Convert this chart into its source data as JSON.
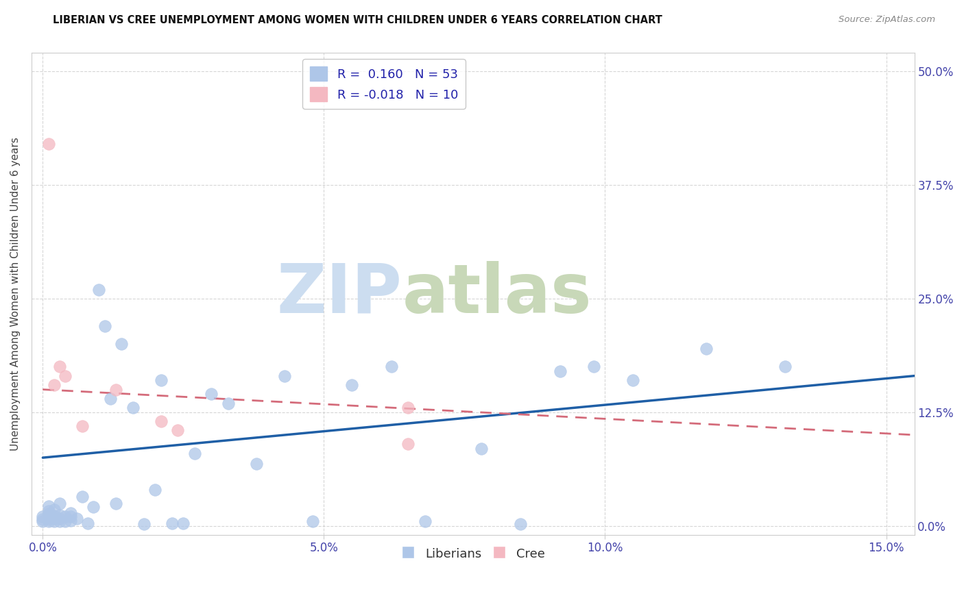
{
  "title": "LIBERIAN VS CREE UNEMPLOYMENT AMONG WOMEN WITH CHILDREN UNDER 6 YEARS CORRELATION CHART",
  "source": "Source: ZipAtlas.com",
  "ylabel": "Unemployment Among Women with Children Under 6 years",
  "xlabel_ticks": [
    "0.0%",
    "5.0%",
    "10.0%",
    "15.0%"
  ],
  "xlabel_vals": [
    0.0,
    0.05,
    0.1,
    0.15
  ],
  "ylabel_ticks": [
    "0.0%",
    "12.5%",
    "25.0%",
    "37.5%",
    "50.0%"
  ],
  "ylabel_vals": [
    0.0,
    0.125,
    0.25,
    0.375,
    0.5
  ],
  "xlim": [
    -0.002,
    0.155
  ],
  "ylim": [
    -0.01,
    0.52
  ],
  "liberian_color": "#aec6e8",
  "cree_color": "#f4b8c1",
  "liberian_line_color": "#1f5fa6",
  "cree_line_color": "#d46b7a",
  "liberian_x": [
    0.0,
    0.0,
    0.0,
    0.001,
    0.001,
    0.001,
    0.001,
    0.001,
    0.001,
    0.002,
    0.002,
    0.002,
    0.002,
    0.003,
    0.003,
    0.003,
    0.003,
    0.004,
    0.004,
    0.005,
    0.005,
    0.005,
    0.006,
    0.007,
    0.008,
    0.009,
    0.01,
    0.011,
    0.012,
    0.013,
    0.014,
    0.016,
    0.018,
    0.02,
    0.021,
    0.023,
    0.025,
    0.027,
    0.03,
    0.033,
    0.038,
    0.043,
    0.048,
    0.055,
    0.062,
    0.068,
    0.078,
    0.085,
    0.092,
    0.098,
    0.105,
    0.118,
    0.132
  ],
  "liberian_y": [
    0.005,
    0.007,
    0.01,
    0.005,
    0.007,
    0.01,
    0.013,
    0.016,
    0.022,
    0.005,
    0.008,
    0.011,
    0.018,
    0.005,
    0.008,
    0.012,
    0.025,
    0.005,
    0.01,
    0.006,
    0.01,
    0.014,
    0.008,
    0.032,
    0.003,
    0.021,
    0.26,
    0.22,
    0.14,
    0.025,
    0.2,
    0.13,
    0.002,
    0.04,
    0.16,
    0.003,
    0.003,
    0.08,
    0.145,
    0.135,
    0.068,
    0.165,
    0.005,
    0.155,
    0.175,
    0.005,
    0.085,
    0.002,
    0.17,
    0.175,
    0.16,
    0.195,
    0.175
  ],
  "cree_x": [
    0.001,
    0.002,
    0.003,
    0.004,
    0.007,
    0.013,
    0.021,
    0.024,
    0.065,
    0.065
  ],
  "cree_y": [
    0.42,
    0.155,
    0.175,
    0.165,
    0.11,
    0.15,
    0.115,
    0.105,
    0.13,
    0.09
  ],
  "liberian_line_x": [
    0.0,
    0.155
  ],
  "liberian_line_y": [
    0.075,
    0.165
  ],
  "cree_line_x": [
    0.0,
    0.155
  ],
  "cree_line_y": [
    0.15,
    0.1
  ]
}
